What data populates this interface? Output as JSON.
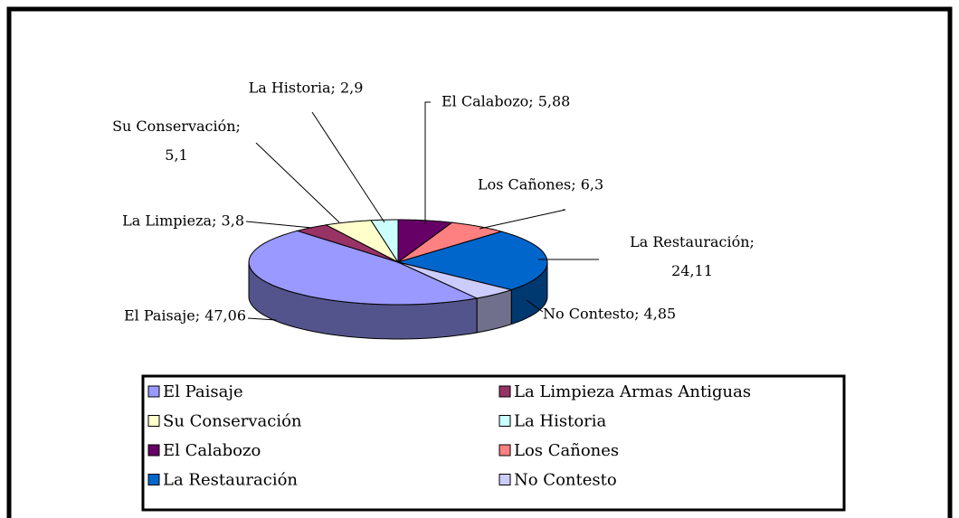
{
  "chart_data": {
    "type": "pie3d",
    "categories": [
      "El Paisaje",
      "La Limpieza Armas Antiguas",
      "Su Conservación",
      "La Historia",
      "El Calabozo",
      "Los Cañones",
      "La Restauración",
      "No Contesto"
    ],
    "values": [
      47.06,
      3.8,
      5.1,
      2.9,
      5.88,
      6.3,
      24.11,
      4.85
    ],
    "value_labels": [
      "El Paisaje; 47,06",
      "La Limpieza; 3,8",
      "Su Conservación; 5,1",
      "La Historia; 2,9",
      "El Calabozo; 5,88",
      "Los Cañones; 6,3",
      "La Restauración; 24,11",
      "No Contesto; 4,85"
    ],
    "colors": [
      "#9999ff",
      "#993366",
      "#ffffcc",
      "#ccffff",
      "#660066",
      "#ff8080",
      "#0066cc",
      "#ccccff"
    ],
    "legend": "bottom"
  }
}
